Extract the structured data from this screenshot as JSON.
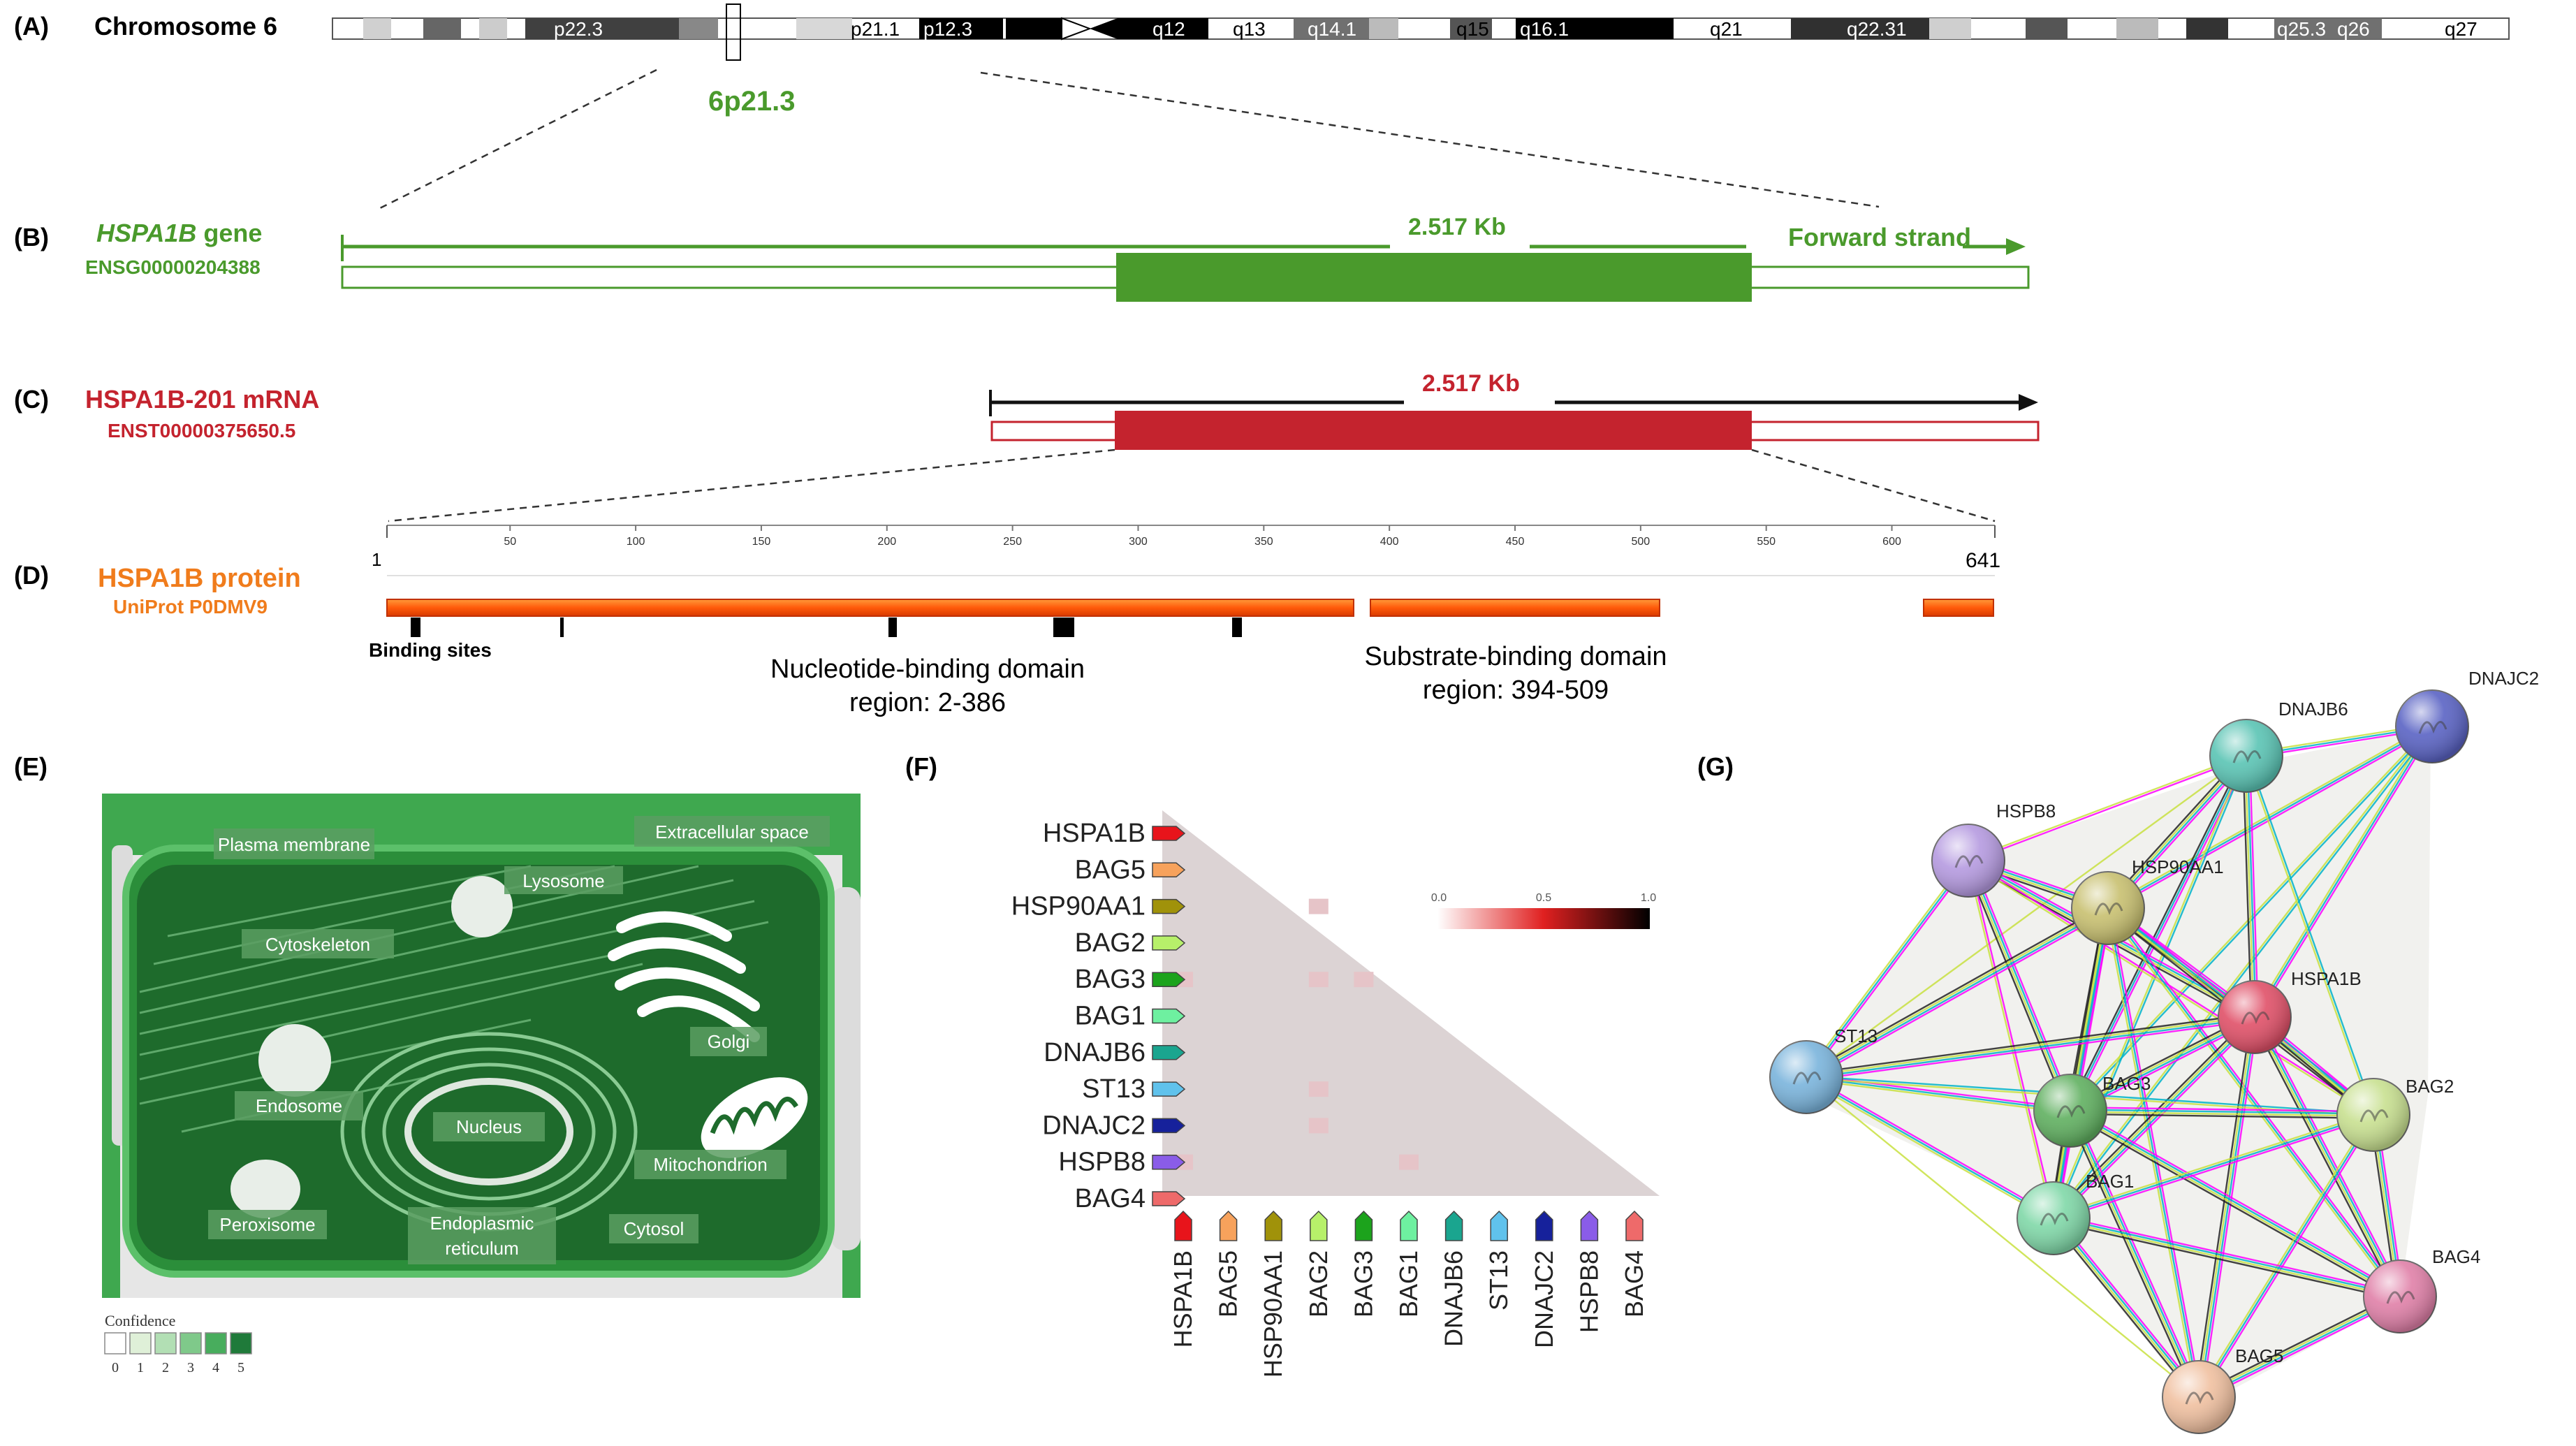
{
  "panels": {
    "a": "(A)",
    "b": "(B)",
    "c": "(C)",
    "d": "(D)",
    "e": "(E)",
    "f": "(F)",
    "g": "(G)"
  },
  "chromosome": {
    "title": "Chromosome 6",
    "zoom_label": "6p21.3",
    "bands": [
      {
        "label": "p22.3",
        "color": "#404040",
        "text_color": "#ffffff"
      },
      {
        "label": "p21.1",
        "color": "#ffffff",
        "text_color": "#000000"
      },
      {
        "label": "p12.3",
        "color": "#000000",
        "text_color": "#ffffff"
      },
      {
        "label": "q12",
        "color": "#000000",
        "text_color": "#ffffff"
      },
      {
        "label": "q13",
        "color": "#ffffff",
        "text_color": "#000000"
      },
      {
        "label": "q14.1",
        "color": "#707070",
        "text_color": "#ffffff"
      },
      {
        "label": "q15",
        "color": "#ffffff",
        "text_color": "#000000"
      },
      {
        "label": "q16.1",
        "color": "#000000",
        "text_color": "#ffffff"
      },
      {
        "label": "q21",
        "color": "#ffffff",
        "text_color": "#000000"
      },
      {
        "label": "q22.31",
        "color": "#303030",
        "text_color": "#ffffff"
      },
      {
        "label": "q25.3",
        "color": "#707070",
        "text_color": "#ffffff"
      },
      {
        "label": "q26",
        "color": "#707070",
        "text_color": "#ffffff"
      },
      {
        "label": "q27",
        "color": "#ffffff",
        "text_color": "#000000"
      }
    ]
  },
  "gene": {
    "name": "HSPA1B",
    "suffix": " gene",
    "id": "ENSG00000204388",
    "length": "2.517 Kb",
    "strand": "Forward strand",
    "color": "#4a9a2c"
  },
  "mrna": {
    "name": "HSPA1B-201 mRNA",
    "id": "ENST00000375650.5",
    "length": "2.517 Kb",
    "color": "#c4232e"
  },
  "protein": {
    "name": "HSPA1B protein",
    "id": "UniProt P0DMV9",
    "color": "#f07c1c",
    "ruler_start": "1",
    "ruler_end": "641",
    "ticks": [
      "50",
      "100",
      "150",
      "200",
      "250",
      "300",
      "350",
      "400",
      "450",
      "500",
      "550",
      "600"
    ],
    "binding_label": "Binding sites",
    "domain1_name": "Nucleotide-binding domain",
    "domain1_region": "region: 2-386",
    "domain2_name": "Substrate-binding domain",
    "domain2_region": "region: 394-509"
  },
  "cell": {
    "labels": {
      "plasma_membrane": "Plasma membrane",
      "extracellular": "Extracellular space",
      "lysosome": "Lysosome",
      "cytoskeleton": "Cytoskeleton",
      "golgi": "Golgi",
      "endosome": "Endosome",
      "nucleus": "Nucleus",
      "mitochondrion": "Mitochondrion",
      "peroxisome": "Peroxisome",
      "er_line1": "Endoplasmic",
      "er_line2": "reticulum",
      "cytosol": "Cytosol"
    },
    "confidence_title": "Confidence",
    "confidence_levels": [
      "0",
      "1",
      "2",
      "3",
      "4",
      "5"
    ],
    "confidence_colors": [
      "#ffffff",
      "#dff0d8",
      "#b2dfb4",
      "#7fc98a",
      "#48ad5d",
      "#1f7a3a"
    ]
  },
  "matrix": {
    "proteins": [
      "HSPA1B",
      "BAG5",
      "HSP90AA1",
      "BAG2",
      "BAG3",
      "BAG1",
      "DNAJB6",
      "ST13",
      "DNAJC2",
      "HSPB8",
      "BAG4"
    ],
    "arrow_colors": [
      "#e8141b",
      "#f7a25c",
      "#a0920a",
      "#b7f06a",
      "#1ca31c",
      "#6ef0a0",
      "#1aa58f",
      "#60c2ec",
      "#16219b",
      "#8a5ce8",
      "#ee6a6a"
    ],
    "scale_min": "0.0",
    "scale_mid": "0.5",
    "scale_max": "1.0"
  },
  "network": {
    "nodes": [
      {
        "id": "DNAJC2",
        "color": "#5a63c4"
      },
      {
        "id": "DNAJB6",
        "color": "#5ac4b4"
      },
      {
        "id": "HSPB8",
        "color": "#b59ae0"
      },
      {
        "id": "HSP90AA1",
        "color": "#c8c070"
      },
      {
        "id": "HSPA1B",
        "color": "#e05068"
      },
      {
        "id": "ST13",
        "color": "#7ab4dc"
      },
      {
        "id": "BAG3",
        "color": "#60b060"
      },
      {
        "id": "BAG2",
        "color": "#c8e090"
      },
      {
        "id": "BAG1",
        "color": "#80d8a8"
      },
      {
        "id": "BAG4",
        "color": "#e080a8"
      },
      {
        "id": "BAG5",
        "color": "#f0c0a0"
      }
    ]
  }
}
